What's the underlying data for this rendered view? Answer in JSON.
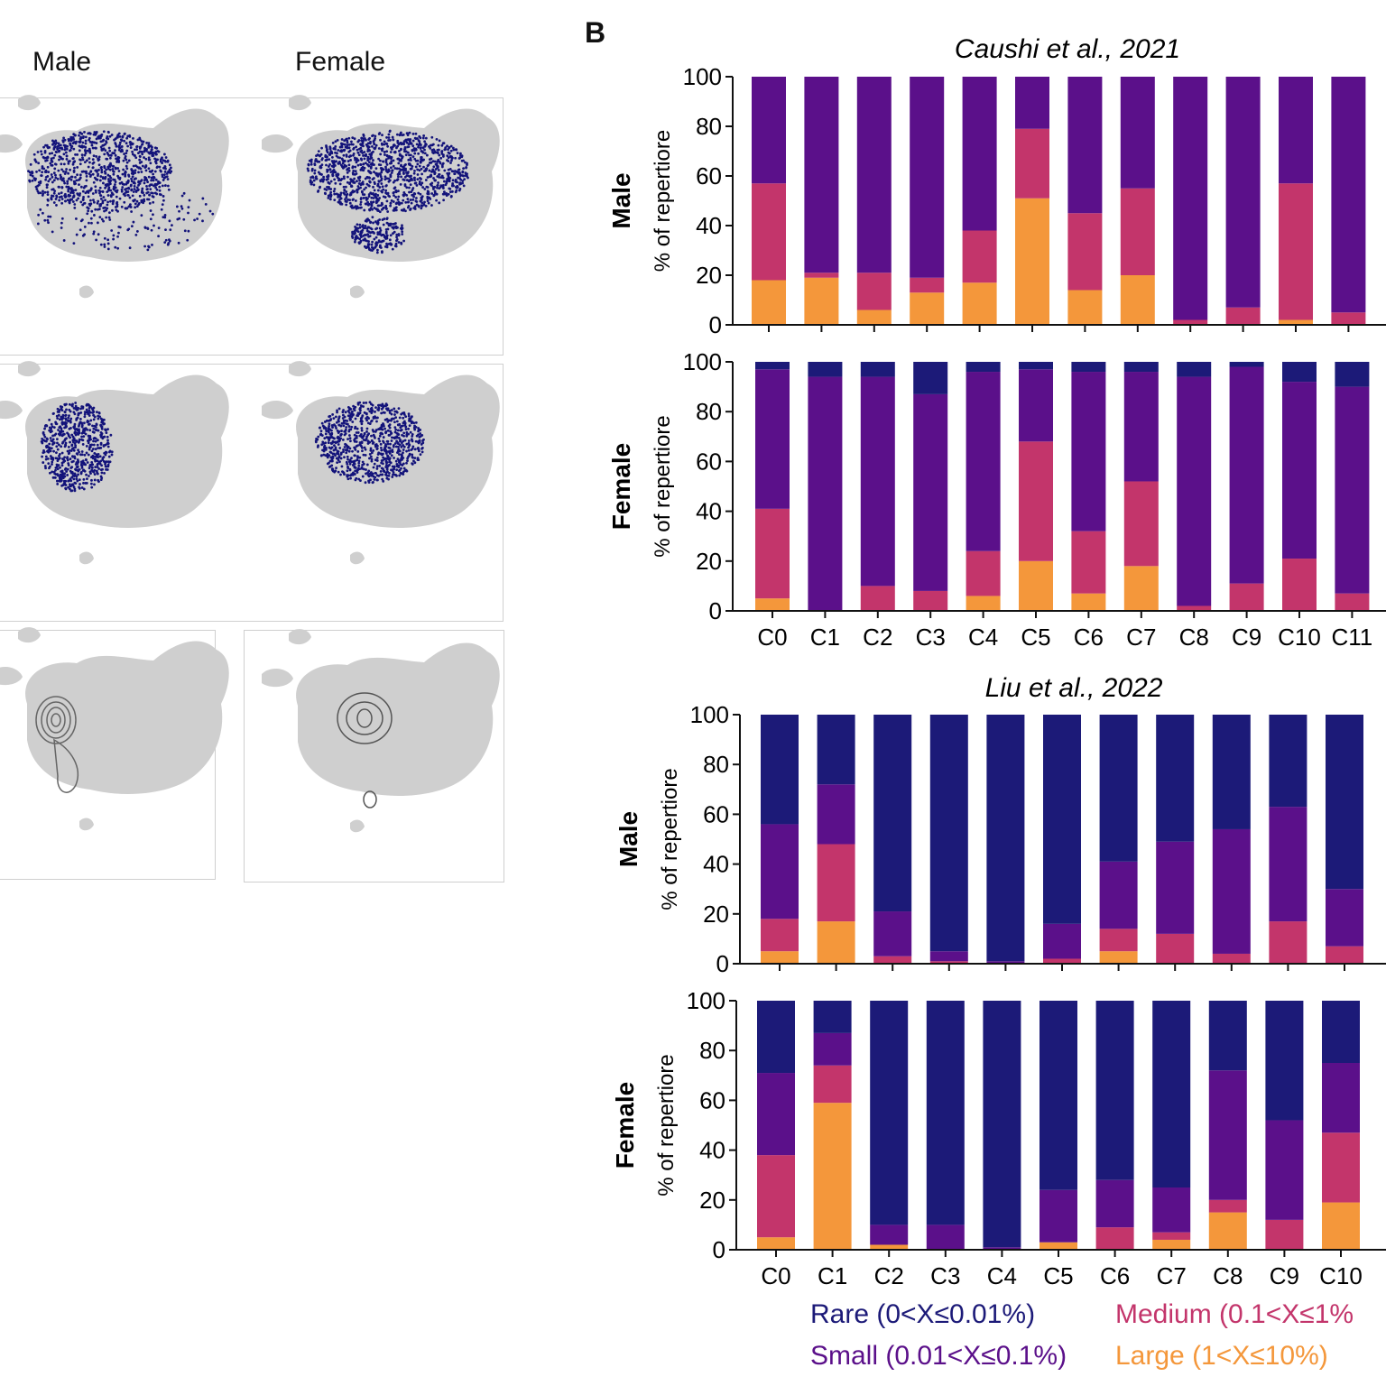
{
  "panel_b_letter": "B",
  "umap_columns": {
    "left": "Male",
    "right": "Female"
  },
  "colors": {
    "rare": "#1c1a78",
    "small": "#5b108a",
    "medium": "#c3356b",
    "large": "#f4973b",
    "umap_bg": "#cfcfcf",
    "umap_dots": "#13137a"
  },
  "legend": {
    "rare": "Rare (0<X≤0.01%)",
    "small": "Small (0.01<X≤0.1%)",
    "medium": "Medium (0.1<X≤1%",
    "large": "Large (1<X≤10%)"
  },
  "datasets": [
    {
      "title": "Caushi et al., 2021"
    },
    {
      "title": "Liu et al., 2022"
    }
  ],
  "chart_data": [
    {
      "type": "bar",
      "stacked": true,
      "dataset": "Caushi et al., 2021",
      "group_label": "Male",
      "ylabel": "% of repertiore",
      "ylim": [
        0,
        100
      ],
      "yticks": [
        0,
        20,
        40,
        60,
        80,
        100
      ],
      "categories": [
        "C0",
        "C1",
        "C2",
        "C3",
        "C4",
        "C5",
        "C6",
        "C7",
        "C8",
        "C9",
        "C10",
        "C11"
      ],
      "show_xticklabels": false,
      "series": [
        {
          "key": "large",
          "values": [
            18,
            19,
            6,
            13,
            17,
            51,
            14,
            20,
            0,
            0,
            2,
            0
          ]
        },
        {
          "key": "medium",
          "values": [
            39,
            2,
            15,
            6,
            21,
            28,
            31,
            35,
            2,
            7,
            55,
            5
          ]
        },
        {
          "key": "small",
          "values": [
            43,
            79,
            79,
            81,
            62,
            21,
            55,
            45,
            98,
            93,
            43,
            95
          ]
        },
        {
          "key": "rare",
          "values": [
            0,
            0,
            0,
            0,
            0,
            0,
            0,
            0,
            0,
            0,
            0,
            0
          ]
        }
      ]
    },
    {
      "type": "bar",
      "stacked": true,
      "dataset": "Caushi et al., 2021",
      "group_label": "Female",
      "ylabel": "% of repertiore",
      "ylim": [
        0,
        100
      ],
      "yticks": [
        0,
        20,
        40,
        60,
        80,
        100
      ],
      "categories": [
        "C0",
        "C1",
        "C2",
        "C3",
        "C4",
        "C5",
        "C6",
        "C7",
        "C8",
        "C9",
        "C10",
        "C11"
      ],
      "show_xticklabels": true,
      "series": [
        {
          "key": "large",
          "values": [
            5,
            0,
            0,
            0,
            6,
            20,
            7,
            18,
            0,
            0,
            0,
            0
          ]
        },
        {
          "key": "medium",
          "values": [
            36,
            0,
            10,
            8,
            18,
            48,
            25,
            34,
            2,
            11,
            21,
            7
          ]
        },
        {
          "key": "small",
          "values": [
            56,
            94,
            84,
            79,
            72,
            29,
            64,
            44,
            92,
            87,
            71,
            83
          ]
        },
        {
          "key": "rare",
          "values": [
            3,
            6,
            6,
            13,
            4,
            3,
            4,
            4,
            6,
            2,
            8,
            10
          ]
        }
      ]
    },
    {
      "type": "bar",
      "stacked": true,
      "dataset": "Liu et al., 2022",
      "group_label": "Male",
      "ylabel": "% of repertiore",
      "ylim": [
        0,
        100
      ],
      "yticks": [
        0,
        20,
        40,
        60,
        80,
        100
      ],
      "categories": [
        "C0",
        "C1",
        "C2",
        "C3",
        "C4",
        "C5",
        "C6",
        "C7",
        "C8",
        "C9",
        "C10"
      ],
      "show_xticklabels": false,
      "series": [
        {
          "key": "large",
          "values": [
            5,
            17,
            0,
            0,
            0,
            0,
            5,
            0,
            0,
            0,
            0
          ]
        },
        {
          "key": "medium",
          "values": [
            13,
            31,
            3,
            1,
            0,
            2,
            9,
            12,
            4,
            17,
            7
          ]
        },
        {
          "key": "small",
          "values": [
            38,
            24,
            18,
            4,
            1,
            14,
            27,
            37,
            50,
            46,
            23
          ]
        },
        {
          "key": "rare",
          "values": [
            44,
            28,
            79,
            95,
            99,
            84,
            59,
            51,
            46,
            37,
            70
          ]
        }
      ]
    },
    {
      "type": "bar",
      "stacked": true,
      "dataset": "Liu et al., 2022",
      "group_label": "Female",
      "ylabel": "% of repertiore",
      "ylim": [
        0,
        100
      ],
      "yticks": [
        0,
        20,
        40,
        60,
        80,
        100
      ],
      "categories": [
        "C0",
        "C1",
        "C2",
        "C3",
        "C4",
        "C5",
        "C6",
        "C7",
        "C8",
        "C9",
        "C10"
      ],
      "show_xticklabels": true,
      "series": [
        {
          "key": "large",
          "values": [
            5,
            59,
            2,
            0,
            0,
            3,
            0,
            4,
            15,
            0,
            19
          ]
        },
        {
          "key": "medium",
          "values": [
            33,
            15,
            0,
            0,
            0,
            0,
            9,
            3,
            5,
            12,
            28
          ]
        },
        {
          "key": "small",
          "values": [
            33,
            13,
            8,
            10,
            1,
            21,
            19,
            18,
            52,
            40,
            28
          ]
        },
        {
          "key": "rare",
          "values": [
            29,
            13,
            90,
            90,
            99,
            76,
            72,
            75,
            28,
            48,
            25
          ]
        }
      ]
    }
  ]
}
